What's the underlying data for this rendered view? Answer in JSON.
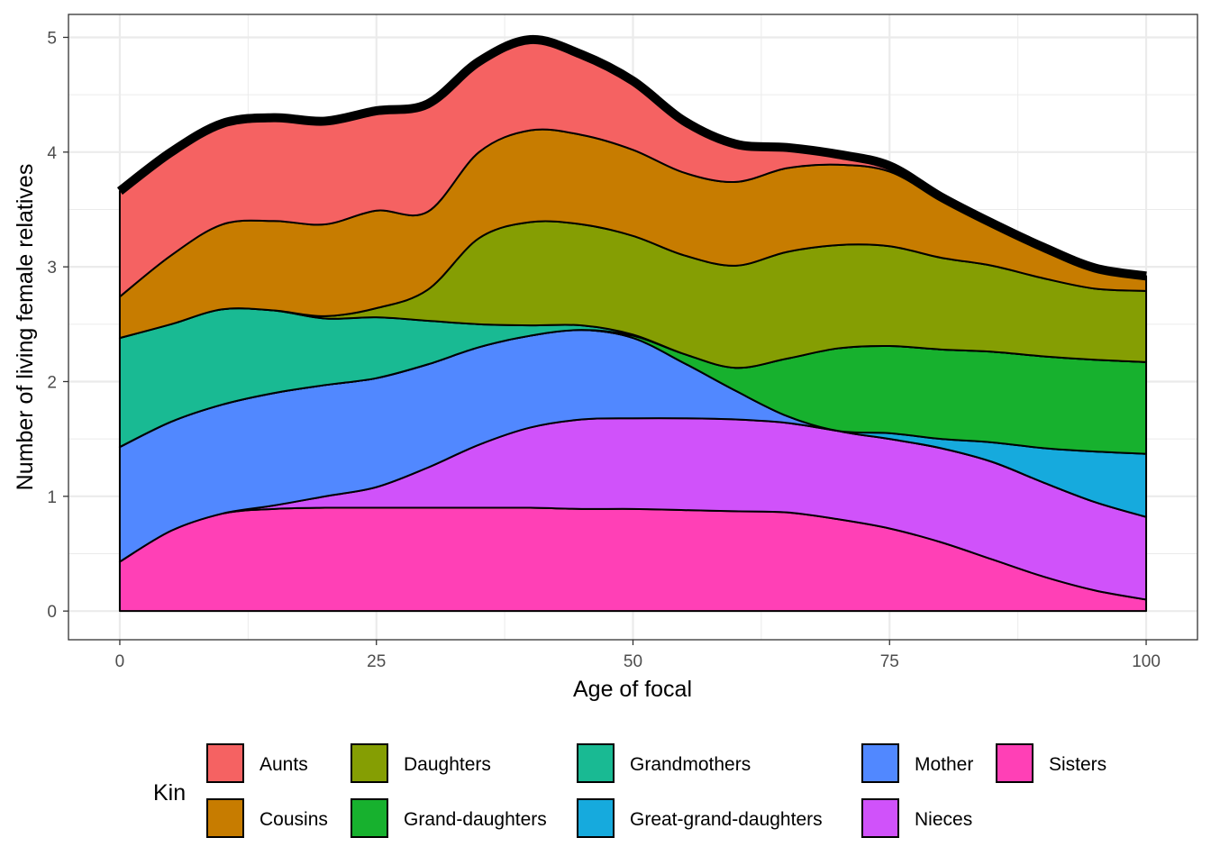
{
  "chart_data": {
    "type": "area",
    "stacked": true,
    "xlabel": "Age of focal",
    "ylabel": "Number of living female relatives",
    "xlim": [
      -5,
      105
    ],
    "ylim": [
      -0.25,
      5.2
    ],
    "xticks": [
      0,
      25,
      50,
      75,
      100
    ],
    "yticks": [
      0,
      1,
      2,
      3,
      4,
      5
    ],
    "grid": true,
    "legend": {
      "title": "Kin",
      "position": "bottom"
    },
    "x": [
      0,
      5,
      10,
      15,
      20,
      25,
      30,
      35,
      40,
      45,
      50,
      55,
      60,
      65,
      70,
      75,
      80,
      85,
      90,
      95,
      100
    ],
    "series": [
      {
        "name": "Sisters",
        "color": "#FF40B6",
        "values": [
          0.43,
          0.7,
          0.85,
          0.89,
          0.9,
          0.9,
          0.9,
          0.9,
          0.9,
          0.89,
          0.89,
          0.88,
          0.87,
          0.86,
          0.8,
          0.72,
          0.6,
          0.45,
          0.3,
          0.18,
          0.1
        ]
      },
      {
        "name": "Nieces",
        "color": "#D052FA",
        "values": [
          0.0,
          0.0,
          0.0,
          0.03,
          0.1,
          0.18,
          0.35,
          0.55,
          0.7,
          0.78,
          0.79,
          0.8,
          0.8,
          0.78,
          0.77,
          0.78,
          0.82,
          0.85,
          0.82,
          0.77,
          0.72
        ]
      },
      {
        "name": "Mother",
        "color": "#5188FF",
        "values": [
          1.0,
          0.95,
          0.95,
          0.98,
          0.97,
          0.95,
          0.9,
          0.85,
          0.8,
          0.78,
          0.7,
          0.48,
          0.25,
          0.06,
          0.0,
          0.0,
          0.0,
          0.0,
          0.0,
          0.0,
          0.0
        ]
      },
      {
        "name": "Great-grand-daughters",
        "color": "#16AADD",
        "values": [
          0.0,
          0.0,
          0.0,
          0.0,
          0.0,
          0.0,
          0.0,
          0.0,
          0.0,
          0.0,
          0.0,
          0.0,
          0.0,
          0.0,
          0.0,
          0.05,
          0.08,
          0.17,
          0.3,
          0.44,
          0.55
        ]
      },
      {
        "name": "Grand-daughters",
        "color": "#17B12E",
        "values": [
          0.0,
          0.0,
          0.0,
          0.0,
          0.0,
          0.0,
          0.0,
          0.0,
          0.0,
          0.0,
          0.02,
          0.08,
          0.2,
          0.5,
          0.72,
          0.76,
          0.78,
          0.79,
          0.8,
          0.8,
          0.8
        ]
      },
      {
        "name": "Grandmothers",
        "color": "#19BA93",
        "values": [
          0.95,
          0.85,
          0.83,
          0.72,
          0.58,
          0.53,
          0.38,
          0.2,
          0.09,
          0.04,
          0.01,
          0.0,
          0.0,
          0.0,
          0.0,
          0.0,
          0.0,
          0.0,
          0.0,
          0.0,
          0.0
        ]
      },
      {
        "name": "Daughters",
        "color": "#859E03",
        "values": [
          0.0,
          0.0,
          0.0,
          0.0,
          0.02,
          0.08,
          0.27,
          0.75,
          0.9,
          0.88,
          0.86,
          0.86,
          0.89,
          0.93,
          0.9,
          0.87,
          0.8,
          0.75,
          0.68,
          0.62,
          0.62
        ]
      },
      {
        "name": "Cousins",
        "color": "#C77C00",
        "values": [
          0.36,
          0.6,
          0.74,
          0.78,
          0.8,
          0.85,
          0.68,
          0.75,
          0.8,
          0.78,
          0.75,
          0.72,
          0.73,
          0.73,
          0.7,
          0.65,
          0.5,
          0.35,
          0.25,
          0.17,
          0.1
        ]
      },
      {
        "name": "Aunts",
        "color": "#F56262",
        "values": [
          0.92,
          0.9,
          0.88,
          0.9,
          0.9,
          0.87,
          0.94,
          0.79,
          0.79,
          0.7,
          0.6,
          0.45,
          0.33,
          0.18,
          0.09,
          0.05,
          0.03,
          0.02,
          0.02,
          0.01,
          0.03
        ]
      }
    ],
    "legend_order": [
      "Aunts",
      "Cousins",
      "Daughters",
      "Grand-daughters",
      "Grandmothers",
      "Great-grand-daughters",
      "Mother",
      "Nieces",
      "Sisters"
    ]
  }
}
